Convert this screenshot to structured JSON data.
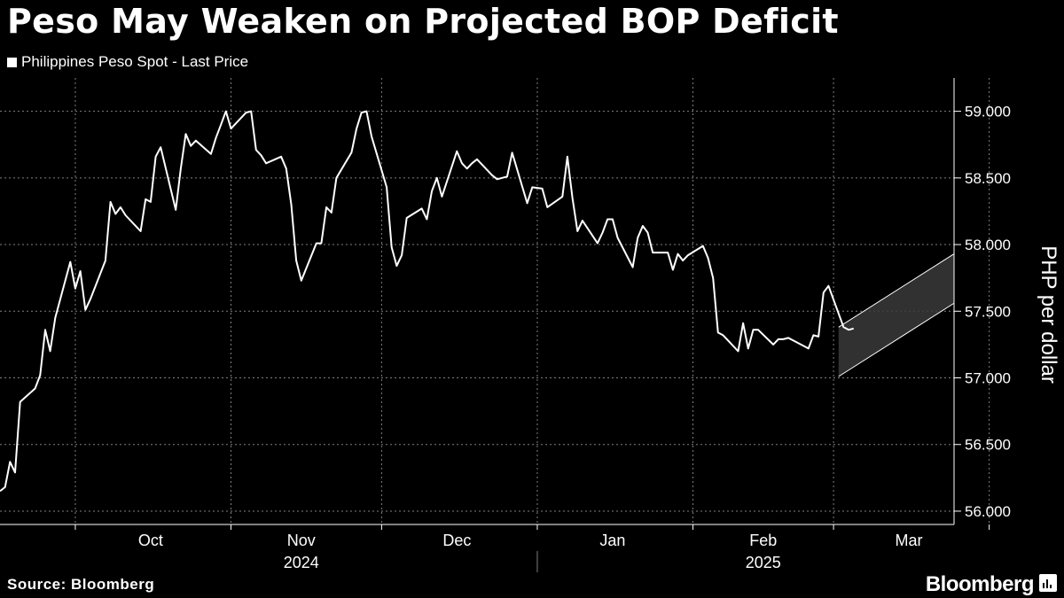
{
  "header": {
    "title": "Peso May Weaken on Projected BOP Deficit",
    "legend_label": "Philippines Peso Spot - Last Price"
  },
  "footer": {
    "source": "Source: Bloomberg",
    "brand": "Bloomberg"
  },
  "colors": {
    "background": "#000000",
    "line": "#ffffff",
    "grid": "#7f7f7f",
    "channel_fill": "#3a3a3a"
  },
  "chart_data": {
    "type": "line",
    "title": "Peso May Weaken on Projected BOP Deficit",
    "ylabel": "PHP per dollar",
    "ylim": [
      55.9,
      59.25
    ],
    "yticks": [
      56.0,
      56.5,
      57.0,
      57.5,
      58.0,
      58.5,
      59.0
    ],
    "ytick_labels": [
      "56.000",
      "56.500",
      "57.000",
      "57.500",
      "58.000",
      "58.500",
      "59.000"
    ],
    "x_start": "2024-09-16",
    "x_end": "2025-03-25",
    "month_labels": [
      {
        "label": "Oct",
        "date": "2024-10-16"
      },
      {
        "label": "Nov",
        "date": "2024-11-15"
      },
      {
        "label": "Dec",
        "date": "2024-12-16"
      },
      {
        "label": "Jan",
        "date": "2025-01-16"
      },
      {
        "label": "Feb",
        "date": "2025-02-15"
      },
      {
        "label": "Mar",
        "date": "2025-03-16"
      }
    ],
    "month_grid": [
      "2024-10-01",
      "2024-11-01",
      "2024-12-01",
      "2025-01-01",
      "2025-02-01",
      "2025-03-01",
      "2025-04-01"
    ],
    "year_labels": [
      {
        "label": "2024",
        "date": "2024-11-15"
      },
      {
        "label": "2025",
        "date": "2025-02-15"
      }
    ],
    "year_divider": "2025-01-01",
    "grid": true,
    "legend_position": "top-left",
    "series": [
      {
        "name": "Philippines Peso Spot - Last Price",
        "points": [
          [
            "2024-09-16",
            56.15
          ],
          [
            "2024-09-17",
            56.18
          ],
          [
            "2024-09-18",
            56.37
          ],
          [
            "2024-09-19",
            56.29
          ],
          [
            "2024-09-20",
            56.82
          ],
          [
            "2024-09-23",
            56.92
          ],
          [
            "2024-09-24",
            57.02
          ],
          [
            "2024-09-25",
            57.36
          ],
          [
            "2024-09-26",
            57.2
          ],
          [
            "2024-09-27",
            57.45
          ],
          [
            "2024-09-30",
            57.87
          ],
          [
            "2024-10-01",
            57.67
          ],
          [
            "2024-10-02",
            57.8
          ],
          [
            "2024-10-03",
            57.51
          ],
          [
            "2024-10-04",
            57.59
          ],
          [
            "2024-10-07",
            57.88
          ],
          [
            "2024-10-08",
            58.32
          ],
          [
            "2024-10-09",
            58.23
          ],
          [
            "2024-10-10",
            58.28
          ],
          [
            "2024-10-11",
            58.22
          ],
          [
            "2024-10-14",
            58.1
          ],
          [
            "2024-10-15",
            58.34
          ],
          [
            "2024-10-16",
            58.32
          ],
          [
            "2024-10-17",
            58.66
          ],
          [
            "2024-10-18",
            58.73
          ],
          [
            "2024-10-21",
            58.26
          ],
          [
            "2024-10-22",
            58.57
          ],
          [
            "2024-10-23",
            58.83
          ],
          [
            "2024-10-24",
            58.74
          ],
          [
            "2024-10-25",
            58.78
          ],
          [
            "2024-10-28",
            58.68
          ],
          [
            "2024-10-29",
            58.8
          ],
          [
            "2024-10-30",
            58.9
          ],
          [
            "2024-10-31",
            59.0
          ],
          [
            "2024-11-01",
            58.87
          ],
          [
            "2024-11-04",
            58.99
          ],
          [
            "2024-11-05",
            59.0
          ],
          [
            "2024-11-06",
            58.71
          ],
          [
            "2024-11-07",
            58.67
          ],
          [
            "2024-11-08",
            58.61
          ],
          [
            "2024-11-11",
            58.66
          ],
          [
            "2024-11-12",
            58.57
          ],
          [
            "2024-11-13",
            58.3
          ],
          [
            "2024-11-14",
            57.88
          ],
          [
            "2024-11-15",
            57.73
          ],
          [
            "2024-11-18",
            58.01
          ],
          [
            "2024-11-19",
            58.01
          ],
          [
            "2024-11-20",
            58.28
          ],
          [
            "2024-11-21",
            58.24
          ],
          [
            "2024-11-22",
            58.5
          ],
          [
            "2024-11-25",
            58.69
          ],
          [
            "2024-11-26",
            58.87
          ],
          [
            "2024-11-27",
            58.99
          ],
          [
            "2024-11-28",
            59.0
          ],
          [
            "2024-11-29",
            58.81
          ],
          [
            "2024-12-02",
            58.43
          ],
          [
            "2024-12-03",
            57.98
          ],
          [
            "2024-12-04",
            57.84
          ],
          [
            "2024-12-05",
            57.92
          ],
          [
            "2024-12-06",
            58.2
          ],
          [
            "2024-12-09",
            58.27
          ],
          [
            "2024-12-10",
            58.19
          ],
          [
            "2024-12-11",
            58.4
          ],
          [
            "2024-12-12",
            58.5
          ],
          [
            "2024-12-13",
            58.36
          ],
          [
            "2024-12-16",
            58.7
          ],
          [
            "2024-12-17",
            58.61
          ],
          [
            "2024-12-18",
            58.57
          ],
          [
            "2024-12-19",
            58.61
          ],
          [
            "2024-12-20",
            58.64
          ],
          [
            "2024-12-23",
            58.52
          ],
          [
            "2024-12-24",
            58.49
          ],
          [
            "2024-12-26",
            58.51
          ],
          [
            "2024-12-27",
            58.69
          ],
          [
            "2024-12-30",
            58.31
          ],
          [
            "2024-12-31",
            58.43
          ],
          [
            "2025-01-02",
            58.42
          ],
          [
            "2025-01-03",
            58.28
          ],
          [
            "2025-01-06",
            58.36
          ],
          [
            "2025-01-07",
            58.66
          ],
          [
            "2025-01-08",
            58.35
          ],
          [
            "2025-01-09",
            58.1
          ],
          [
            "2025-01-10",
            58.18
          ],
          [
            "2025-01-13",
            58.01
          ],
          [
            "2025-01-14",
            58.09
          ],
          [
            "2025-01-15",
            58.19
          ],
          [
            "2025-01-16",
            58.19
          ],
          [
            "2025-01-17",
            58.05
          ],
          [
            "2025-01-20",
            57.83
          ],
          [
            "2025-01-21",
            58.05
          ],
          [
            "2025-01-22",
            58.14
          ],
          [
            "2025-01-23",
            58.09
          ],
          [
            "2025-01-24",
            57.94
          ],
          [
            "2025-01-27",
            57.94
          ],
          [
            "2025-01-28",
            57.81
          ],
          [
            "2025-01-29",
            57.93
          ],
          [
            "2025-01-30",
            57.88
          ],
          [
            "2025-01-31",
            57.92
          ],
          [
            "2025-02-03",
            57.99
          ],
          [
            "2025-02-04",
            57.9
          ],
          [
            "2025-02-05",
            57.75
          ],
          [
            "2025-02-06",
            57.34
          ],
          [
            "2025-02-07",
            57.32
          ],
          [
            "2025-02-10",
            57.2
          ],
          [
            "2025-02-11",
            57.41
          ],
          [
            "2025-02-12",
            57.22
          ],
          [
            "2025-02-13",
            57.36
          ],
          [
            "2025-02-14",
            57.36
          ],
          [
            "2025-02-17",
            57.25
          ],
          [
            "2025-02-18",
            57.29
          ],
          [
            "2025-02-19",
            57.29
          ],
          [
            "2025-02-20",
            57.3
          ],
          [
            "2025-02-21",
            57.28
          ],
          [
            "2025-02-24",
            57.22
          ],
          [
            "2025-02-25",
            57.32
          ],
          [
            "2025-02-26",
            57.31
          ],
          [
            "2025-02-27",
            57.64
          ],
          [
            "2025-02-28",
            57.69
          ],
          [
            "2025-03-03",
            57.38
          ],
          [
            "2025-03-04",
            57.36
          ],
          [
            "2025-03-05",
            57.37
          ]
        ]
      }
    ],
    "annotation": {
      "type": "rising channel",
      "upper": [
        [
          "2025-03-02",
          57.38
        ],
        [
          "2025-03-25",
          57.93
        ]
      ],
      "lower": [
        [
          "2025-03-02",
          57.01
        ],
        [
          "2025-03-25",
          57.56
        ]
      ]
    }
  }
}
